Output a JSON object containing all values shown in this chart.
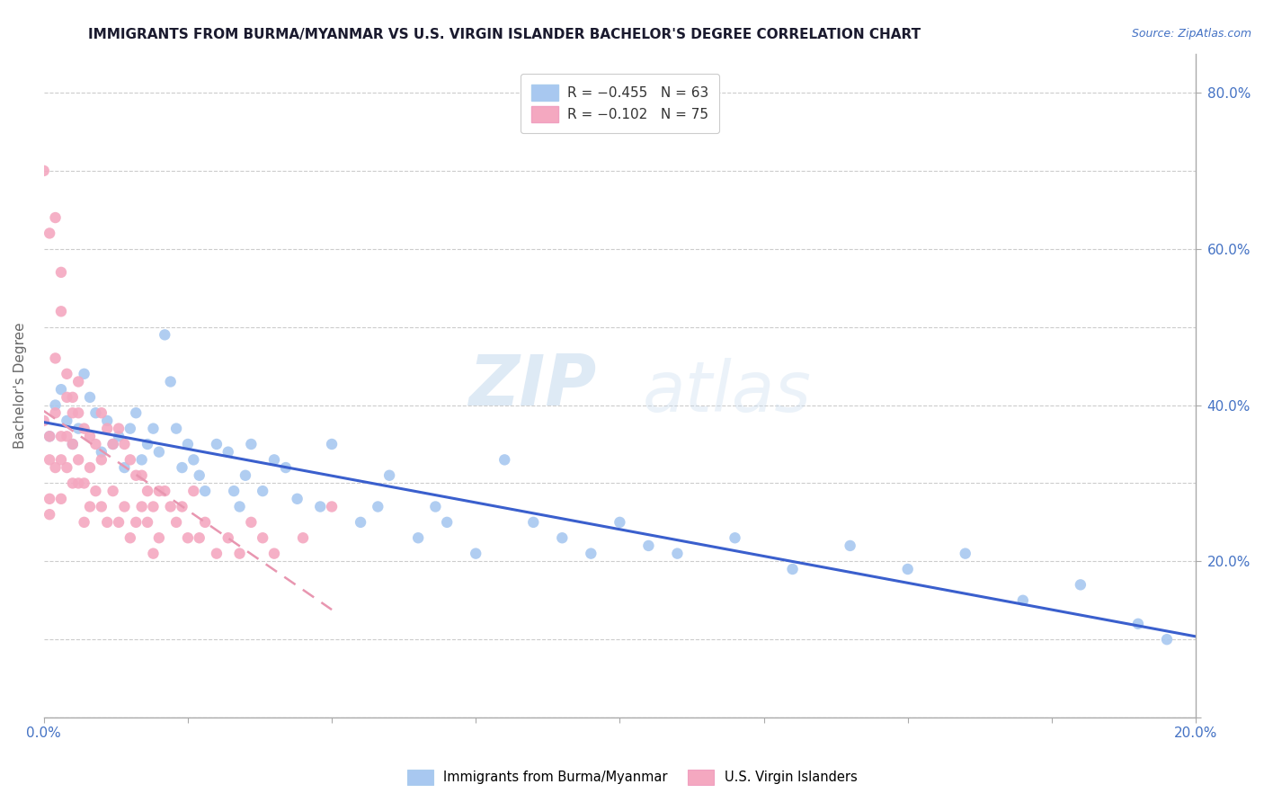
{
  "title": "IMMIGRANTS FROM BURMA/MYANMAR VS U.S. VIRGIN ISLANDER BACHELOR'S DEGREE CORRELATION CHART",
  "source_text": "Source: ZipAtlas.com",
  "ylabel": "Bachelor's Degree",
  "legend_blue_label": "R = −0.455   N = 63",
  "legend_pink_label": "R = −0.102   N = 75",
  "watermark_zip": "ZIP",
  "watermark_atlas": "atlas",
  "blue_color": "#A8C8F0",
  "pink_color": "#F4A8C0",
  "blue_line_color": "#3A5FCD",
  "pink_line_color": "#E896B0",
  "title_color": "#1A1A2E",
  "source_color": "#4472C4",
  "axis_label_color": "#4472C4",
  "blue_scatter_x": [
    0.001,
    0.002,
    0.003,
    0.004,
    0.005,
    0.006,
    0.007,
    0.008,
    0.009,
    0.01,
    0.011,
    0.012,
    0.013,
    0.014,
    0.015,
    0.016,
    0.017,
    0.018,
    0.019,
    0.02,
    0.021,
    0.022,
    0.023,
    0.024,
    0.025,
    0.026,
    0.027,
    0.028,
    0.03,
    0.032,
    0.033,
    0.034,
    0.035,
    0.036,
    0.038,
    0.04,
    0.042,
    0.044,
    0.048,
    0.05,
    0.055,
    0.058,
    0.06,
    0.065,
    0.068,
    0.07,
    0.075,
    0.08,
    0.085,
    0.09,
    0.095,
    0.1,
    0.105,
    0.11,
    0.12,
    0.13,
    0.14,
    0.15,
    0.16,
    0.17,
    0.18,
    0.19,
    0.195
  ],
  "blue_scatter_y": [
    0.36,
    0.4,
    0.42,
    0.38,
    0.35,
    0.37,
    0.44,
    0.41,
    0.39,
    0.34,
    0.38,
    0.35,
    0.36,
    0.32,
    0.37,
    0.39,
    0.33,
    0.35,
    0.37,
    0.34,
    0.49,
    0.43,
    0.37,
    0.32,
    0.35,
    0.33,
    0.31,
    0.29,
    0.35,
    0.34,
    0.29,
    0.27,
    0.31,
    0.35,
    0.29,
    0.33,
    0.32,
    0.28,
    0.27,
    0.35,
    0.25,
    0.27,
    0.31,
    0.23,
    0.27,
    0.25,
    0.21,
    0.33,
    0.25,
    0.23,
    0.21,
    0.25,
    0.22,
    0.21,
    0.23,
    0.19,
    0.22,
    0.19,
    0.21,
    0.15,
    0.17,
    0.12,
    0.1
  ],
  "pink_scatter_x": [
    0.0,
    0.0,
    0.001,
    0.001,
    0.001,
    0.001,
    0.001,
    0.002,
    0.002,
    0.002,
    0.002,
    0.003,
    0.003,
    0.003,
    0.003,
    0.003,
    0.004,
    0.004,
    0.004,
    0.004,
    0.005,
    0.005,
    0.005,
    0.005,
    0.006,
    0.006,
    0.006,
    0.006,
    0.007,
    0.007,
    0.007,
    0.008,
    0.008,
    0.008,
    0.009,
    0.009,
    0.01,
    0.01,
    0.01,
    0.011,
    0.011,
    0.012,
    0.012,
    0.013,
    0.013,
    0.014,
    0.014,
    0.015,
    0.015,
    0.016,
    0.016,
    0.017,
    0.017,
    0.018,
    0.018,
    0.019,
    0.019,
    0.02,
    0.02,
    0.021,
    0.022,
    0.023,
    0.024,
    0.025,
    0.026,
    0.027,
    0.028,
    0.03,
    0.032,
    0.034,
    0.036,
    0.038,
    0.04,
    0.045,
    0.05
  ],
  "pink_scatter_y": [
    0.7,
    0.38,
    0.62,
    0.36,
    0.33,
    0.28,
    0.26,
    0.64,
    0.46,
    0.39,
    0.32,
    0.57,
    0.52,
    0.36,
    0.33,
    0.28,
    0.44,
    0.41,
    0.36,
    0.32,
    0.39,
    0.41,
    0.35,
    0.3,
    0.43,
    0.39,
    0.33,
    0.3,
    0.37,
    0.3,
    0.25,
    0.36,
    0.32,
    0.27,
    0.35,
    0.29,
    0.39,
    0.33,
    0.27,
    0.37,
    0.25,
    0.35,
    0.29,
    0.37,
    0.25,
    0.35,
    0.27,
    0.33,
    0.23,
    0.31,
    0.25,
    0.31,
    0.27,
    0.29,
    0.25,
    0.27,
    0.21,
    0.29,
    0.23,
    0.29,
    0.27,
    0.25,
    0.27,
    0.23,
    0.29,
    0.23,
    0.25,
    0.21,
    0.23,
    0.21,
    0.25,
    0.23,
    0.21,
    0.23,
    0.27
  ],
  "xlim": [
    0.0,
    0.2
  ],
  "ylim": [
    0.0,
    0.85
  ],
  "xtick_positions": [
    0.0,
    0.025,
    0.05,
    0.075,
    0.1,
    0.125,
    0.15,
    0.175,
    0.2
  ],
  "ytick_positions": [
    0.0,
    0.1,
    0.2,
    0.3,
    0.4,
    0.5,
    0.6,
    0.7,
    0.8
  ],
  "right_ytick_labels": [
    "",
    "20.0%",
    "40.0%",
    "60.0%",
    "80.0%"
  ],
  "right_ytick_positions": [
    0.0,
    0.2,
    0.4,
    0.6,
    0.8
  ],
  "figsize": [
    14.06,
    8.92
  ],
  "dpi": 100
}
